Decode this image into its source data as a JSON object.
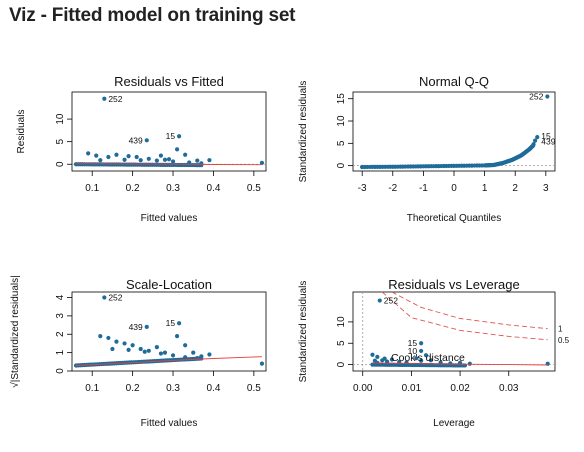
{
  "page": {
    "title": "Viz - Fitted model on training set"
  },
  "colors": {
    "points": "#1f6b99",
    "smooth": "#e8413f",
    "cooks": "#e0564f",
    "refline": "#9a9a9a",
    "text": "#111111"
  },
  "chart_data": [
    {
      "id": "resid-fitted",
      "type": "scatter",
      "title": "Residuals vs Fitted",
      "xlabel": "Fitted values",
      "ylabel": "Residuals",
      "xlim": [
        0.05,
        0.53
      ],
      "ylim": [
        -1.5,
        16
      ],
      "xticks": [
        0.1,
        0.2,
        0.3,
        0.4,
        0.5
      ],
      "yticks": [
        0,
        5,
        10
      ],
      "reference_line": 0,
      "smooth": [
        [
          0.06,
          0.1
        ],
        [
          0.2,
          0.05
        ],
        [
          0.3,
          0.02
        ],
        [
          0.4,
          -0.05
        ],
        [
          0.52,
          -0.1
        ]
      ],
      "points": [
        [
          0.13,
          14.5
        ],
        [
          0.235,
          5.3
        ],
        [
          0.315,
          6.2
        ],
        [
          0.09,
          2.4
        ],
        [
          0.11,
          1.9
        ],
        [
          0.14,
          1.6
        ],
        [
          0.16,
          2.1
        ],
        [
          0.19,
          1.8
        ],
        [
          0.21,
          1.6
        ],
        [
          0.24,
          1.2
        ],
        [
          0.27,
          1.9
        ],
        [
          0.29,
          1.1
        ],
        [
          0.31,
          3.3
        ],
        [
          0.33,
          2.1
        ],
        [
          0.36,
          0.8
        ],
        [
          0.39,
          0.9
        ],
        [
          0.52,
          0.3
        ],
        [
          0.12,
          0.9
        ],
        [
          0.18,
          1.0
        ],
        [
          0.22,
          0.9
        ],
        [
          0.26,
          0.8
        ],
        [
          0.28,
          1.0
        ],
        [
          0.3,
          0.6
        ],
        [
          0.34,
          0.4
        ],
        [
          0.37,
          0.2
        ]
      ],
      "baseline_points": {
        "x_from": 0.06,
        "x_to": 0.37,
        "y_from": 0.0,
        "y_to": -0.2,
        "n": 60
      },
      "labels": [
        {
          "text": "252",
          "x": 0.13,
          "y": 14.5,
          "side": "right"
        },
        {
          "text": "439",
          "x": 0.235,
          "y": 5.3,
          "side": "left"
        },
        {
          "text": "15",
          "x": 0.315,
          "y": 6.2,
          "side": "left"
        }
      ]
    },
    {
      "id": "normal-qq",
      "type": "scatter",
      "title": "Normal Q-Q",
      "xlabel": "Theoretical Quantiles",
      "ylabel": "Standardized residuals",
      "xlim": [
        -3.3,
        3.3
      ],
      "ylim": [
        -1.2,
        16.5
      ],
      "xticks": [
        -3,
        -2,
        -1,
        0,
        1,
        2,
        3
      ],
      "yticks": [
        0,
        5,
        10,
        15
      ],
      "reference_line": 0,
      "qq_curve": [
        [
          -3.0,
          -0.3
        ],
        [
          -2.0,
          -0.25
        ],
        [
          -1.0,
          -0.15
        ],
        [
          0.0,
          -0.05
        ],
        [
          1.0,
          0.05
        ],
        [
          1.3,
          0.15
        ],
        [
          1.6,
          0.6
        ],
        [
          1.9,
          1.3
        ],
        [
          2.2,
          2.3
        ],
        [
          2.45,
          3.6
        ],
        [
          2.6,
          4.6
        ]
      ],
      "points": [
        [
          -3.0,
          -0.3
        ],
        [
          2.6,
          4.8
        ],
        [
          2.65,
          5.6
        ],
        [
          2.72,
          6.4
        ],
        [
          3.05,
          15.5
        ]
      ],
      "labels": [
        {
          "text": "252",
          "x": 3.05,
          "y": 15.5,
          "side": "left"
        },
        {
          "text": "15",
          "x": 2.72,
          "y": 6.6,
          "side": "right"
        },
        {
          "text": "439",
          "x": 2.72,
          "y": 5.4,
          "side": "right"
        }
      ]
    },
    {
      "id": "scale-location",
      "type": "scatter",
      "title": "Scale-Location",
      "xlabel": "Fitted values",
      "ylabel": "√|Standardized residuals|",
      "xlim": [
        0.05,
        0.53
      ],
      "ylim": [
        0.0,
        4.3
      ],
      "xticks": [
        0.1,
        0.2,
        0.3,
        0.4,
        0.5
      ],
      "yticks": [
        0,
        1,
        2,
        3,
        4
      ],
      "smooth": [
        [
          0.06,
          0.3
        ],
        [
          0.2,
          0.45
        ],
        [
          0.3,
          0.58
        ],
        [
          0.4,
          0.68
        ],
        [
          0.52,
          0.78
        ]
      ],
      "points": [
        [
          0.13,
          4.0
        ],
        [
          0.235,
          2.4
        ],
        [
          0.315,
          2.6
        ],
        [
          0.12,
          1.9
        ],
        [
          0.14,
          1.8
        ],
        [
          0.16,
          1.6
        ],
        [
          0.18,
          1.5
        ],
        [
          0.2,
          1.4
        ],
        [
          0.22,
          1.2
        ],
        [
          0.24,
          1.1
        ],
        [
          0.26,
          1.3
        ],
        [
          0.28,
          1.0
        ],
        [
          0.31,
          1.9
        ],
        [
          0.33,
          1.4
        ],
        [
          0.35,
          1.0
        ],
        [
          0.37,
          0.8
        ],
        [
          0.39,
          0.9
        ],
        [
          0.52,
          0.4
        ],
        [
          0.15,
          1.2
        ],
        [
          0.19,
          1.15
        ],
        [
          0.23,
          1.05
        ],
        [
          0.27,
          0.95
        ],
        [
          0.3,
          0.85
        ],
        [
          0.33,
          0.75
        ],
        [
          0.36,
          0.7
        ]
      ],
      "baseline_points": {
        "x_from": 0.06,
        "x_to": 0.37,
        "y_from": 0.3,
        "y_to": 0.68,
        "n": 60
      },
      "labels": [
        {
          "text": "252",
          "x": 0.13,
          "y": 4.0,
          "side": "right"
        },
        {
          "text": "439",
          "x": 0.235,
          "y": 2.4,
          "side": "left"
        },
        {
          "text": "15",
          "x": 0.315,
          "y": 2.6,
          "side": "left"
        }
      ]
    },
    {
      "id": "resid-leverage",
      "type": "scatter",
      "title": "Residuals vs Leverage",
      "xlabel": "Leverage",
      "ylabel": "Standardized residuals",
      "xlim": [
        -0.002,
        0.0395
      ],
      "ylim": [
        -1.5,
        17
      ],
      "xticks": [
        0.0,
        0.01,
        0.02,
        0.03
      ],
      "xtick_labels": [
        "0.00",
        "0.01",
        "0.02",
        "0.03"
      ],
      "yticks": [
        0,
        5,
        10
      ],
      "reference_line": 0,
      "vertical_line": 0,
      "smooth": [
        [
          0.002,
          0.4
        ],
        [
          0.01,
          0.2
        ],
        [
          0.02,
          0.1
        ],
        [
          0.03,
          0.0
        ],
        [
          0.038,
          -0.1
        ]
      ],
      "cooks_curves": [
        {
          "label": "1",
          "points": [
            [
              0.006,
              17
            ],
            [
              0.012,
              13.4
            ],
            [
              0.02,
              10.8
            ],
            [
              0.03,
              9.3
            ],
            [
              0.038,
              8.4
            ]
          ]
        },
        {
          "label": "0.5",
          "points": [
            [
              0.004,
              17
            ],
            [
              0.01,
              11.0
            ],
            [
              0.02,
              8.0
            ],
            [
              0.03,
              6.6
            ],
            [
              0.038,
              5.8
            ]
          ]
        }
      ],
      "points": [
        [
          0.0035,
          15.0
        ],
        [
          0.012,
          5.0
        ],
        [
          0.012,
          3.2
        ],
        [
          0.002,
          2.3
        ],
        [
          0.003,
          1.8
        ],
        [
          0.004,
          1.0
        ],
        [
          0.005,
          0.7
        ],
        [
          0.006,
          1.2
        ],
        [
          0.0075,
          0.6
        ],
        [
          0.009,
          0.5
        ],
        [
          0.011,
          1.5
        ],
        [
          0.012,
          0.9
        ],
        [
          0.013,
          2.2
        ],
        [
          0.014,
          1.0
        ],
        [
          0.016,
          0.5
        ],
        [
          0.018,
          0.3
        ],
        [
          0.02,
          0.4
        ],
        [
          0.022,
          0.2
        ],
        [
          0.038,
          0.2
        ],
        [
          0.003,
          0.4
        ],
        [
          0.0045,
          1.4
        ],
        [
          0.0025,
          0.9
        ]
      ],
      "baseline_points": {
        "x_from": 0.002,
        "x_to": 0.021,
        "y_from": 0.0,
        "y_to": -0.2,
        "n": 50
      },
      "labels": [
        {
          "text": "252",
          "x": 0.0035,
          "y": 15.0,
          "side": "right"
        },
        {
          "text": "15",
          "x": 0.012,
          "y": 5.0,
          "side": "left"
        },
        {
          "text": "10",
          "x": 0.012,
          "y": 3.2,
          "side": "left"
        }
      ],
      "legend": "Cook's distance",
      "cooks_labels": [
        "1",
        "0.5"
      ]
    }
  ]
}
